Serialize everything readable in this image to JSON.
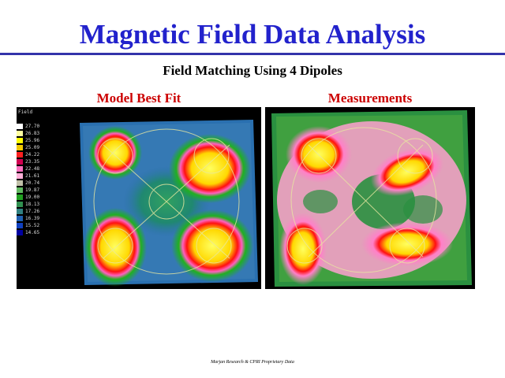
{
  "slide": {
    "title": "Magnetic Field Data Analysis",
    "subtitle": "Field Matching Using 4 Dipoles",
    "footer": "Marjan Research & CPRI Proprietary Data"
  },
  "model_panel": {
    "title": "Model Best Fit"
  },
  "measurements_panel": {
    "title": "Measurements"
  },
  "legend": {
    "title": "Field",
    "entries": [
      {
        "label": "27.70",
        "color": "#ffffff"
      },
      {
        "label": "26.83",
        "color": "#ffffa0"
      },
      {
        "label": "25.96",
        "color": "#ffff00"
      },
      {
        "label": "25.09",
        "color": "#f0c800"
      },
      {
        "label": "24.22",
        "color": "#ff2020"
      },
      {
        "label": "23.35",
        "color": "#d00050"
      },
      {
        "label": "22.48",
        "color": "#ff70c0"
      },
      {
        "label": "21.61",
        "color": "#ffb0d8"
      },
      {
        "label": "20.74",
        "color": "#c0c0a8"
      },
      {
        "label": "19.87",
        "color": "#60b860"
      },
      {
        "label": "19.00",
        "color": "#20a020"
      },
      {
        "label": "18.13",
        "color": "#309050"
      },
      {
        "label": "17.26",
        "color": "#308080"
      },
      {
        "label": "16.39",
        "color": "#2060b0"
      },
      {
        "label": "15.52",
        "color": "#1040c0"
      },
      {
        "label": "14.65",
        "color": "#0000a0"
      }
    ]
  }
}
